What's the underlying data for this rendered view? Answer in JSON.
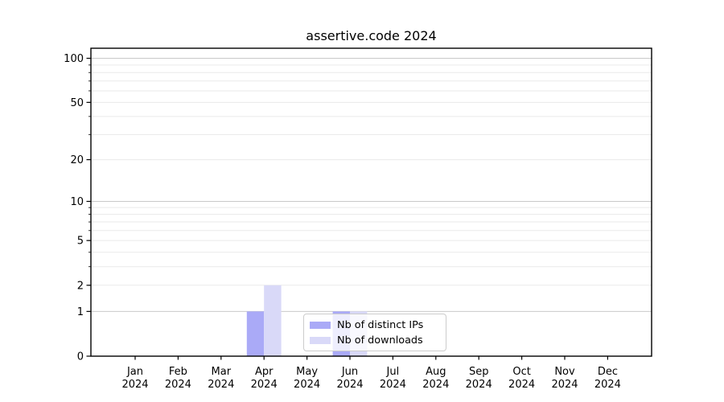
{
  "chart_data": {
    "type": "bar",
    "title": "assertive.code 2024",
    "year": "2024",
    "months": [
      "Jan",
      "Feb",
      "Mar",
      "Apr",
      "May",
      "Jun",
      "Jul",
      "Aug",
      "Sep",
      "Oct",
      "Nov",
      "Dec"
    ],
    "categories": [
      "Jan 2024",
      "Feb 2024",
      "Mar 2024",
      "Apr 2024",
      "May 2024",
      "Jun 2024",
      "Jul 2024",
      "Aug 2024",
      "Sep 2024",
      "Oct 2024",
      "Nov 2024",
      "Dec 2024"
    ],
    "series": [
      {
        "name": "Nb of distinct IPs",
        "color": "#aaaaf7",
        "values": [
          0,
          0,
          0,
          1,
          0,
          1,
          0,
          0,
          0,
          0,
          0,
          0
        ]
      },
      {
        "name": "Nb of downloads",
        "color": "#d9d9f8",
        "values": [
          0,
          0,
          0,
          2,
          0,
          1,
          0,
          0,
          0,
          0,
          0,
          0
        ]
      }
    ],
    "y_ticks": [
      0,
      1,
      2,
      5,
      10,
      20,
      50,
      100
    ],
    "y_tick_labels": [
      "0",
      "1",
      "2",
      "5",
      "10",
      "20",
      "50",
      "100"
    ],
    "major_gridlines": [
      1,
      10,
      100
    ],
    "minor_gridlines": [
      2,
      3,
      4,
      5,
      6,
      7,
      8,
      9,
      20,
      30,
      40,
      50,
      60,
      70,
      80,
      90
    ],
    "y_scale": "log10(1+v)",
    "ylim": [
      0,
      117
    ],
    "xlabel": "",
    "ylabel": "",
    "grid": "horizontal only, major darker than minor",
    "legend_position": "inside, lower center"
  },
  "colors": {
    "background": "#ffffff",
    "spine": "#000000",
    "major_grid": "#c9c9c9",
    "minor_grid": "#eaeaea",
    "tick": "#000000",
    "text": "#000000",
    "legend_border": "#cccccc",
    "legend_background": "rgba(255,255,255,0.8)"
  }
}
